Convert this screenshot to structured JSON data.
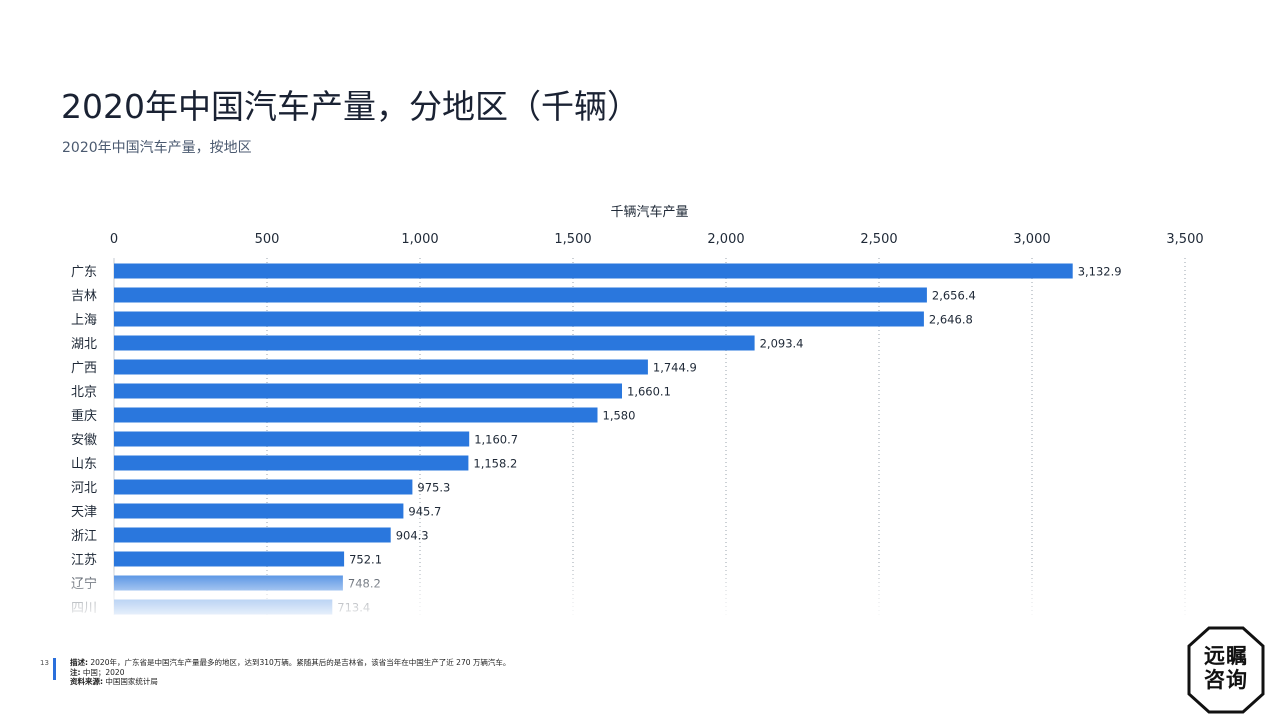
{
  "title": "2020年中国汽车产量，分地区（千辆）",
  "subtitle": "2020年中国汽车产量，按地区",
  "chart_data": {
    "type": "bar",
    "orientation": "horizontal",
    "axis_title": "千辆汽车产量",
    "xlim": [
      0,
      3500
    ],
    "ticks": [
      0,
      500,
      1000,
      1500,
      2000,
      2500,
      3000,
      3500
    ],
    "tick_labels": [
      "0",
      "500",
      "1,000",
      "1,500",
      "2,000",
      "2,500",
      "3,000",
      "3,500"
    ],
    "categories": [
      "广东",
      "吉林",
      "上海",
      "湖北",
      "广西",
      "北京",
      "重庆",
      "安徽",
      "山东",
      "河北",
      "天津",
      "浙江",
      "江苏",
      "辽宁",
      "四川"
    ],
    "values": [
      3132.9,
      2656.4,
      2646.8,
      2093.4,
      1744.9,
      1660.1,
      1580,
      1160.7,
      1158.2,
      975.3,
      945.7,
      904.3,
      752.1,
      748.2,
      713.4
    ],
    "value_labels": [
      "3,132.9",
      "2,656.4",
      "2,646.8",
      "2,093.4",
      "1,744.9",
      "1,660.1",
      "1,580",
      "1,160.7",
      "1,158.2",
      "975.3",
      "945.7",
      "904.3",
      "752.1",
      "748.2",
      "713.4"
    ],
    "bar_color": "#2a77dd",
    "grid": "vertical-dotted",
    "axis_position": "top"
  },
  "footer": {
    "page_number": "13",
    "desc_label": "描述:",
    "desc_text": "2020年，广东省是中国汽车产量最多的地区，达到310万辆。紧随其后的是吉林省，该省当年在中国生产了近 270 万辆汽车。",
    "note_label": "注:",
    "note_text": "中国；2020",
    "source_label": "资料来源:",
    "source_text": "中国国家统计局"
  },
  "logo": {
    "line1": "远瞩",
    "line2": "咨询"
  },
  "colors": {
    "accent": "#2a6fdb",
    "bar": "#2a77dd"
  }
}
